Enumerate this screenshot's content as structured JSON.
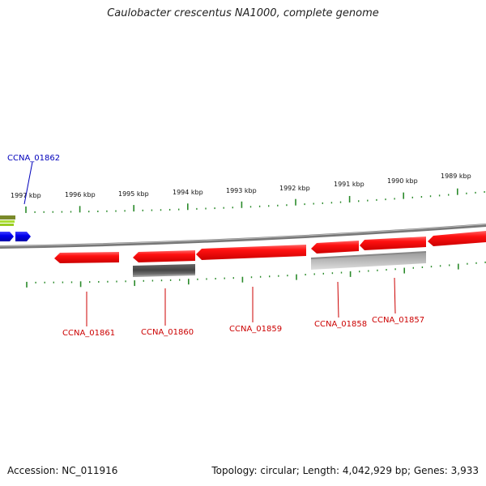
{
  "title": "Caulobacter crescentus NA1000, complete genome",
  "footer": {
    "accession": "Accession: NC_011916",
    "summary": "Topology: circular; Length: 4,042,929 bp; Genes: 3,933"
  },
  "scale_ticks": [
    "1997 kbp",
    "1996 kbp",
    "1995 kbp",
    "1994 kbp",
    "1993 kbp",
    "1992 kbp",
    "1991 kbp",
    "1990 kbp",
    "1989 kbp"
  ],
  "genes": {
    "blue": {
      "label": "CCNA_01862",
      "color": "#0000ee"
    },
    "red": [
      {
        "label": "CCNA_01861"
      },
      {
        "label": "CCNA_01860"
      },
      {
        "label": "CCNA_01859"
      },
      {
        "label": "CCNA_01858"
      },
      {
        "label": "CCNA_01857"
      }
    ]
  },
  "colors": {
    "forward_gene": "#0000ee",
    "reverse_gene": "#ee1111",
    "backbone": "#808080",
    "ticks": "#2a8a2a",
    "red_label": "#cc0000",
    "blue_label": "#0000bb",
    "feature_dark": "#555555",
    "feature_light": "#bbbbbb",
    "feature_green": "#88cc22"
  }
}
